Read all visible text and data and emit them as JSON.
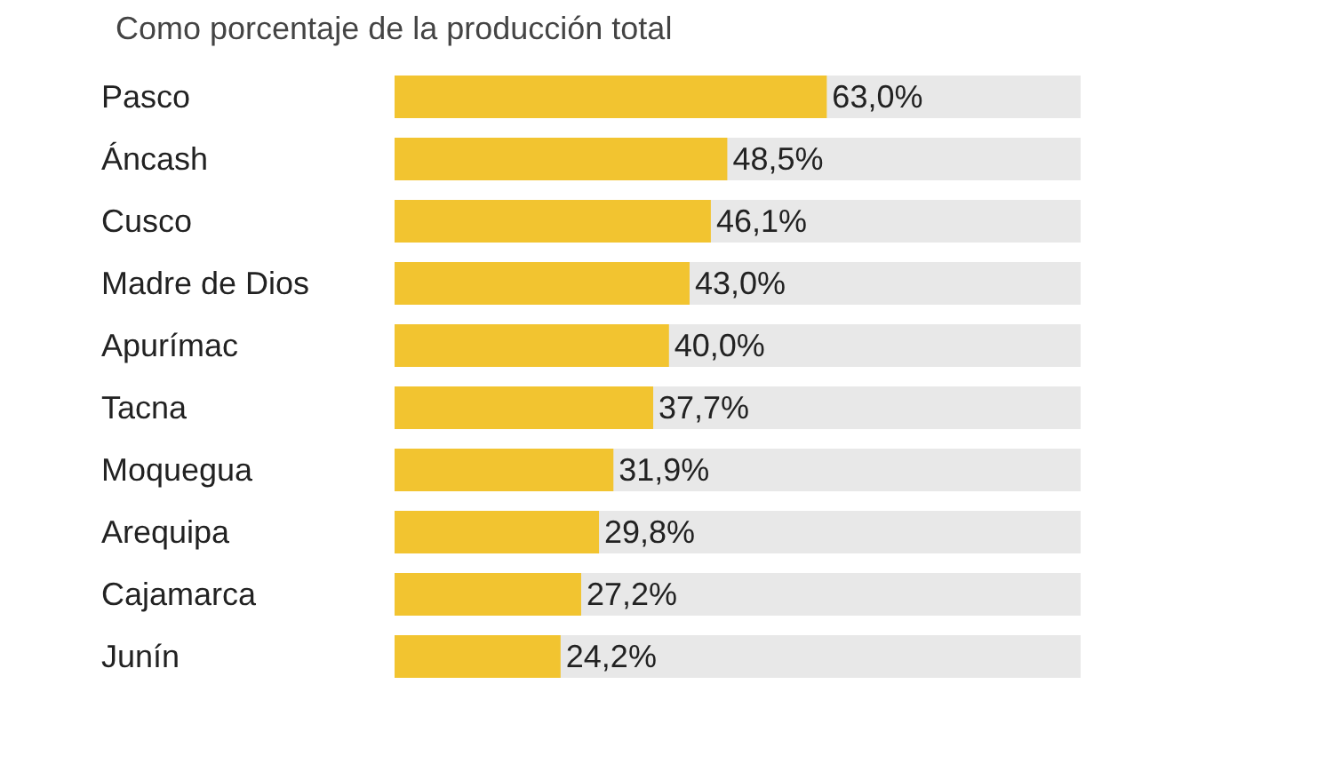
{
  "chart_data": {
    "type": "bar",
    "orientation": "horizontal",
    "title": "Como porcentaje de la producción total",
    "categories": [
      "Pasco",
      "Áncash",
      "Cusco",
      "Madre de Dios",
      "Apurímac",
      "Tacna",
      "Moquegua",
      "Arequipa",
      "Cajamarca",
      "Junín"
    ],
    "values": [
      63.0,
      48.5,
      46.1,
      43.0,
      40.0,
      37.7,
      31.9,
      29.8,
      27.2,
      24.2
    ],
    "value_labels": [
      "63,0%",
      "48,5%",
      "46,1%",
      "43,0%",
      "40,0%",
      "37,7%",
      "31,9%",
      "29,8%",
      "27,2%",
      "24,2%"
    ],
    "color": "#f2c430",
    "xlim": [
      0,
      100
    ]
  }
}
